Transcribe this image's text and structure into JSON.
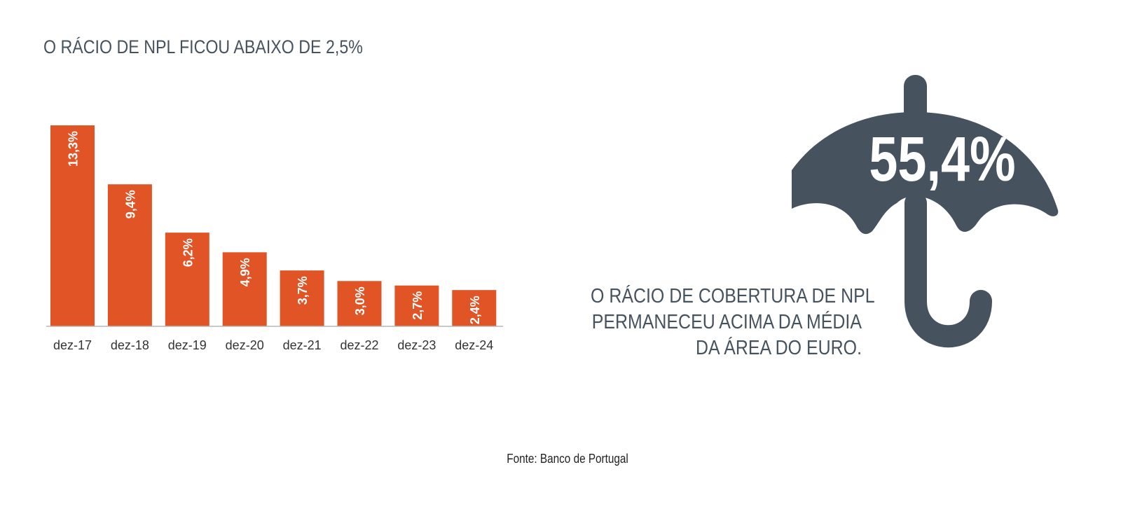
{
  "title": "O RÁCIO DE NPL FICOU ABAIXO DE 2,5%",
  "colors": {
    "bar": "#e05426",
    "text": "#46525e",
    "umbrella": "#46525e",
    "axis": "#b8b8b8"
  },
  "chart_data": {
    "type": "bar",
    "categories": [
      "dez-17",
      "dez-18",
      "dez-19",
      "dez-20",
      "dez-21",
      "dez-22",
      "dez-23",
      "dez-24"
    ],
    "values": [
      13.3,
      9.4,
      6.2,
      4.9,
      3.7,
      3.0,
      2.7,
      2.4
    ],
    "labels": [
      "13,3%",
      "9,4%",
      "6,2%",
      "4,9%",
      "3,7%",
      "3,0%",
      "2,7%",
      "2,4%"
    ],
    "title": "O RÁCIO DE NPL FICOU ABAIXO DE 2,5%",
    "xlabel": "",
    "ylabel": "",
    "grid": false,
    "legend": "none"
  },
  "callout": {
    "value": "55,4%",
    "icon": "umbrella-icon",
    "lines": [
      "O RÁCIO DE COBERTURA DE NPL",
      "PERMANECEU ACIMA DA MÉDIA",
      "DA ÁREA DO EURO."
    ]
  },
  "source": "Fonte: Banco de Portugal"
}
